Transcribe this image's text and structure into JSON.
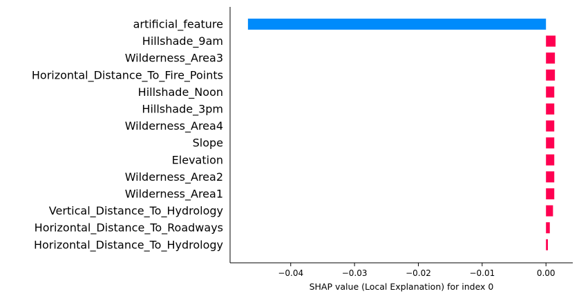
{
  "chart_data": {
    "type": "bar",
    "orientation": "horizontal",
    "title": "",
    "xlabel": "SHAP value (Local Explanation) for index 0",
    "ylabel": "",
    "xlim": [
      -0.0495,
      0.0042
    ],
    "xticks": [
      -0.04,
      -0.03,
      -0.02,
      -0.01,
      0.0
    ],
    "xtick_labels": [
      "−0.04",
      "−0.03",
      "−0.02",
      "−0.01",
      "0.00"
    ],
    "grid": false,
    "legend": "none",
    "colors": {
      "positive": "#ff0051",
      "negative": "#008bfb"
    },
    "categories": [
      "artificial_feature",
      "Hillshade_9am",
      "Wilderness_Area3",
      "Horizontal_Distance_To_Fire_Points",
      "Hillshade_Noon",
      "Hillshade_3pm",
      "Wilderness_Area4",
      "Slope",
      "Elevation",
      "Wilderness_Area2",
      "Wilderness_Area1",
      "Vertical_Distance_To_Hydrology",
      "Horizontal_Distance_To_Roadways",
      "Horizontal_Distance_To_Hydrology"
    ],
    "values": [
      -0.0467,
      0.0015,
      0.0014,
      0.0014,
      0.0013,
      0.0013,
      0.0013,
      0.0013,
      0.0013,
      0.0013,
      0.0013,
      0.0011,
      0.0006,
      0.0003
    ]
  }
}
